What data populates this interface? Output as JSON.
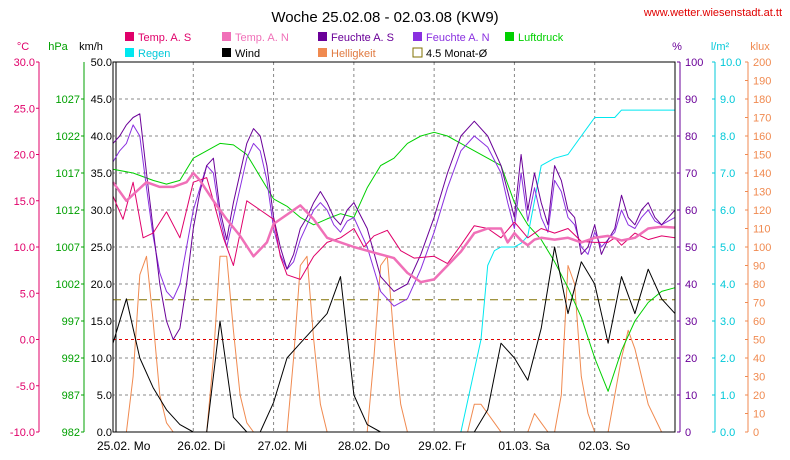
{
  "chart_data": {
    "type": "line",
    "title": "Woche 25.02.08 - 02.03.08 (KW9)",
    "url": "www.wetter.wiesenstadt.at.tt",
    "x_day_labels": [
      "25.02. Mo",
      "26.02. Di",
      "27.02. Mi",
      "28.02. Do",
      "29.02. Fr",
      "01.03. Sa",
      "02.03. So"
    ],
    "x_range_hours": [
      0,
      168
    ],
    "colors": {
      "temp_s": "#e0006a",
      "temp_n": "#f070b8",
      "hum_s": "#6a0098",
      "hum_n": "#8a30e0",
      "pressure": "#00d000",
      "rain": "#00e8f0",
      "wind": "#000000",
      "light": "#f08a50",
      "avg": "#807000"
    },
    "axes": [
      {
        "unit": "°C",
        "color": "#e0006a",
        "min": -10,
        "max": 30,
        "step": 5,
        "decimals": 1,
        "ticks": [
          "30.0",
          "25.0",
          "20.0",
          "15.0",
          "10.0",
          "5.0",
          "0.0",
          "-5.0",
          "-10.0"
        ]
      },
      {
        "unit": "hPa",
        "color": "#00a000",
        "min": 982,
        "max": 1032,
        "step": 5,
        "decimals": 0,
        "ticks": [
          "1027",
          "1022",
          "1017",
          "1012",
          "1007",
          "1002",
          "997",
          "992",
          "987",
          "982"
        ]
      },
      {
        "unit": "km/h",
        "color": "#000000",
        "min": 0,
        "max": 50,
        "step": 5,
        "decimals": 1,
        "ticks": [
          "50.0",
          "45.0",
          "40.0",
          "35.0",
          "30.0",
          "25.0",
          "20.0",
          "15.0",
          "10.0",
          "5.0",
          "0.0"
        ]
      },
      {
        "unit": "%",
        "color": "#6a0098",
        "min": 0,
        "max": 100,
        "step": 10,
        "decimals": 0,
        "ticks": [
          "100",
          "90",
          "80",
          "70",
          "60",
          "50",
          "40",
          "30",
          "20",
          "10",
          "0"
        ]
      },
      {
        "unit": "l/m²",
        "color": "#00c8d8",
        "min": 0,
        "max": 10,
        "step": 1,
        "decimals": 1,
        "ticks": [
          "10.0",
          "9.0",
          "8.0",
          "7.0",
          "6.0",
          "5.0",
          "4.0",
          "3.0",
          "2.0",
          "1.0",
          "0.0"
        ]
      },
      {
        "unit": "klux",
        "color": "#f08a50",
        "min": 0,
        "max": 200,
        "step": 10,
        "decimals": 0,
        "ticks": [
          "200",
          "190",
          "180",
          "170",
          "160",
          "150",
          "140",
          "130",
          "120",
          "110",
          "100",
          "90",
          "80",
          "70",
          "60",
          "50",
          "40",
          "30",
          "20",
          "10",
          "0"
        ]
      }
    ],
    "legend": [
      {
        "label": "Temp. A. S",
        "color": "#e0006a",
        "type": "box"
      },
      {
        "label": "Temp. A. N",
        "color": "#f070b8",
        "type": "box"
      },
      {
        "label": "Feuchte A. S",
        "color": "#6a0098",
        "type": "box"
      },
      {
        "label": "Feuchte A. N",
        "color": "#8a30e0",
        "type": "box"
      },
      {
        "label": "Luftdruck",
        "color": "#00d000",
        "type": "box"
      },
      {
        "label": "Regen",
        "color": "#00e8f0",
        "type": "box"
      },
      {
        "label": "Wind",
        "color": "#000000",
        "type": "box"
      },
      {
        "label": "Helligkeit",
        "color": "#f08a50",
        "type": "box"
      },
      {
        "label": "4.5 Monat-Ø",
        "color": "#807000",
        "type": "outline"
      }
    ],
    "series": [
      {
        "name": "Temp. A. S",
        "axis": 0,
        "color": "#e0006a",
        "width": 1,
        "x": [
          0,
          3,
          6,
          9,
          12,
          16,
          20,
          24,
          28,
          30,
          33,
          36,
          40,
          44,
          48,
          50,
          52,
          56,
          60,
          64,
          68,
          72,
          75,
          78,
          82,
          86,
          90,
          96,
          100,
          104,
          108,
          112,
          116,
          120,
          124,
          128,
          132,
          136,
          140,
          144,
          148,
          150,
          152,
          156,
          160,
          164,
          168
        ],
        "y": [
          15.5,
          13,
          17,
          11,
          11.5,
          13.8,
          11,
          17,
          17.5,
          15,
          11,
          8,
          15,
          14,
          13,
          9,
          7,
          6.5,
          9,
          10.5,
          11,
          12,
          10,
          11.2,
          11.8,
          9.6,
          8.8,
          9,
          8.2,
          10.2,
          12.3,
          12,
          11,
          12.7,
          11,
          12,
          11.5,
          12,
          10.6,
          10.5,
          10.5,
          11,
          10.2,
          11.5,
          10.8,
          11.2,
          11
        ]
      },
      {
        "name": "Temp. A. N",
        "axis": 0,
        "color": "#f070b8",
        "width": 2.5,
        "x": [
          0,
          2,
          4,
          7,
          10,
          14,
          18,
          22,
          24,
          26,
          30,
          34,
          38,
          42,
          46,
          48,
          52,
          56,
          60,
          64,
          68,
          72,
          76,
          80,
          84,
          88,
          92,
          96,
          100,
          104,
          108,
          112,
          116,
          118,
          120,
          122,
          124,
          126,
          128,
          132,
          136,
          140,
          144,
          148,
          152,
          156,
          160,
          164,
          168
        ],
        "y": [
          17,
          16,
          15,
          16,
          17,
          16.5,
          16.5,
          17,
          18,
          17.2,
          15,
          13,
          11.2,
          9,
          10.5,
          12.5,
          13.5,
          14.5,
          13,
          11,
          10.5,
          10,
          9.6,
          9.2,
          8.8,
          7.2,
          6.2,
          6.5,
          8,
          9.5,
          11.5,
          12,
          12,
          10.5,
          11.5,
          10.7,
          10.2,
          10.8,
          11,
          10.8,
          11,
          10.5,
          11,
          11.2,
          10.7,
          11,
          12,
          12.2,
          12.1
        ]
      },
      {
        "name": "Feuchte A. S",
        "axis": 3,
        "color": "#6a0098",
        "width": 1,
        "x": [
          0,
          2,
          4,
          6,
          8,
          10,
          12,
          14,
          16,
          18,
          20,
          22,
          24,
          26,
          28,
          30,
          32,
          34,
          36,
          38,
          40,
          42,
          44,
          46,
          48,
          50,
          52,
          54,
          56,
          58,
          60,
          62,
          64,
          66,
          68,
          70,
          72,
          76,
          80,
          84,
          88,
          92,
          96,
          100,
          104,
          108,
          112,
          116,
          118,
          120,
          122,
          124,
          126,
          128,
          130,
          132,
          134,
          136,
          138,
          140,
          142,
          144,
          146,
          148,
          150,
          152,
          154,
          156,
          158,
          160,
          162,
          164,
          166,
          168
        ],
        "y": [
          78,
          80,
          83,
          85,
          86,
          70,
          55,
          40,
          30,
          25,
          28,
          40,
          55,
          65,
          72,
          74,
          60,
          52,
          62,
          70,
          78,
          82,
          80,
          72,
          58,
          50,
          44,
          48,
          55,
          58,
          62,
          65,
          62,
          58,
          56,
          60,
          62,
          55,
          42,
          38,
          40,
          48,
          58,
          70,
          80,
          84,
          80,
          72,
          65,
          58,
          75,
          60,
          70,
          62,
          56,
          72,
          68,
          60,
          58,
          48,
          50,
          56,
          48,
          52,
          55,
          64,
          58,
          56,
          60,
          62,
          58,
          56,
          58,
          60
        ]
      },
      {
        "name": "Feuchte A. N",
        "axis": 3,
        "color": "#8a30e0",
        "width": 1,
        "x": [
          0,
          2,
          4,
          6,
          8,
          10,
          12,
          14,
          16,
          18,
          20,
          22,
          24,
          26,
          28,
          30,
          32,
          34,
          36,
          38,
          40,
          42,
          44,
          46,
          48,
          50,
          52,
          54,
          56,
          58,
          60,
          62,
          64,
          66,
          68,
          70,
          72,
          76,
          80,
          84,
          88,
          92,
          96,
          100,
          104,
          108,
          112,
          116,
          118,
          120,
          122,
          124,
          126,
          128,
          130,
          132,
          134,
          136,
          138,
          140,
          142,
          144,
          146,
          148,
          150,
          152,
          154,
          156,
          158,
          160,
          162,
          164,
          166,
          168
        ],
        "y": [
          73,
          76,
          78,
          83,
          80,
          66,
          53,
          43,
          38,
          36,
          40,
          50,
          60,
          66,
          72,
          70,
          58,
          50,
          58,
          66,
          74,
          78,
          76,
          68,
          55,
          48,
          44,
          46,
          52,
          56,
          60,
          62,
          60,
          56,
          54,
          57,
          58,
          50,
          38,
          34,
          36,
          44,
          54,
          66,
          76,
          80,
          77,
          70,
          62,
          55,
          70,
          57,
          66,
          58,
          54,
          68,
          65,
          58,
          56,
          50,
          48,
          54,
          50,
          52,
          54,
          60,
          56,
          55,
          58,
          60,
          57,
          56,
          57,
          58
        ]
      },
      {
        "name": "Luftdruck",
        "axis": 1,
        "color": "#00d000",
        "width": 1,
        "x": [
          0,
          6,
          12,
          16,
          20,
          24,
          28,
          32,
          36,
          40,
          44,
          48,
          52,
          56,
          60,
          64,
          68,
          72,
          76,
          80,
          84,
          88,
          92,
          96,
          100,
          104,
          108,
          112,
          116,
          120,
          124,
          128,
          132,
          136,
          140,
          144,
          148,
          152,
          156,
          160,
          164,
          168
        ],
        "y": [
          1017.5,
          1017,
          1016,
          1015.5,
          1016,
          1019,
          1020,
          1021,
          1020.8,
          1019.5,
          1016.5,
          1013.5,
          1012.5,
          1011,
          1010,
          1010.8,
          1011.5,
          1011,
          1015,
          1018,
          1019,
          1021,
          1022,
          1022.5,
          1022,
          1021,
          1020,
          1019,
          1018,
          1013,
          1010,
          1008,
          1005,
          1001.5,
          997.5,
          992,
          987.5,
          993,
          997,
          999.5,
          1001,
          1001.5
        ]
      },
      {
        "name": "Regen",
        "axis": 4,
        "color": "#00e8f0",
        "width": 1,
        "x": [
          0,
          104,
          110,
          112,
          114,
          116,
          118,
          120,
          122,
          124,
          128,
          132,
          136,
          140,
          144,
          150,
          152,
          154,
          160,
          168
        ],
        "y": [
          0,
          0,
          2.5,
          4.5,
          4.9,
          5.0,
          5.0,
          5.0,
          5.1,
          5.3,
          7.2,
          7.4,
          7.5,
          8.0,
          8.5,
          8.5,
          8.7,
          8.7,
          8.7,
          8.7
        ]
      },
      {
        "name": "Wind",
        "axis": 2,
        "color": "#000000",
        "width": 1,
        "x": [
          0,
          4,
          8,
          12,
          16,
          20,
          24,
          28,
          32,
          36,
          40,
          44,
          48,
          52,
          56,
          60,
          64,
          68,
          72,
          76,
          80,
          84,
          88,
          92,
          96,
          100,
          104,
          108,
          112,
          116,
          120,
          124,
          128,
          132,
          136,
          140,
          144,
          148,
          152,
          156,
          160,
          164,
          168
        ],
        "y": [
          12,
          18,
          10,
          6,
          3,
          1,
          0,
          0,
          15,
          2,
          0,
          0,
          4,
          10,
          12,
          14,
          16,
          21,
          5,
          1,
          0,
          0,
          0,
          0,
          0,
          0,
          0,
          0,
          3,
          12,
          10,
          7,
          14,
          25,
          16,
          23,
          20,
          12,
          21,
          16,
          22,
          18,
          16
        ]
      },
      {
        "name": "Helligkeit",
        "axis": 5,
        "color": "#f08a50",
        "width": 1,
        "x": [
          0,
          4,
          6,
          8,
          10,
          12,
          14,
          16,
          18,
          20,
          22,
          24,
          28,
          30,
          32,
          34,
          36,
          38,
          40,
          42,
          44,
          46,
          48,
          52,
          54,
          56,
          58,
          60,
          62,
          64,
          66,
          68,
          72,
          76,
          78,
          80,
          82,
          84,
          86,
          88,
          90,
          92,
          96,
          100,
          104,
          106,
          108,
          110,
          112,
          114,
          116,
          120,
          124,
          126,
          128,
          130,
          132,
          134,
          136,
          138,
          140,
          142,
          144,
          148,
          150,
          152,
          154,
          156,
          160,
          164,
          168
        ],
        "y": [
          0,
          0,
          30,
          85,
          95,
          60,
          20,
          5,
          0,
          0,
          0,
          0,
          0,
          40,
          95,
          95,
          55,
          20,
          5,
          0,
          0,
          0,
          0,
          0,
          40,
          90,
          95,
          50,
          15,
          0,
          0,
          0,
          0,
          0,
          40,
          90,
          95,
          50,
          15,
          0,
          0,
          0,
          0,
          0,
          0,
          0,
          15,
          15,
          10,
          5,
          0,
          0,
          0,
          10,
          5,
          0,
          0,
          20,
          90,
          80,
          30,
          10,
          0,
          0,
          20,
          40,
          55,
          45,
          15,
          0,
          0
        ]
      }
    ],
    "reference_lines": [
      {
        "name": "4.5 Monat-Ø",
        "axis": 0,
        "y": 4.3,
        "color": "#807000",
        "dash": "8,5"
      },
      {
        "name": "0 °C",
        "axis": 0,
        "y": 0.0,
        "color": "#e00000",
        "dash": "3,3"
      }
    ]
  }
}
